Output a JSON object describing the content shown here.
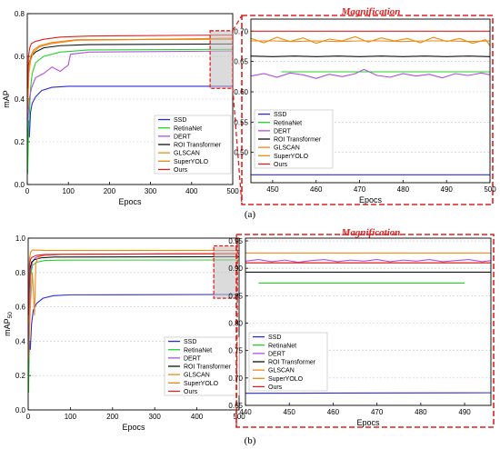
{
  "colors": {
    "SSD": "#2b2bd6",
    "RetinaNet": "#22d422",
    "DERT": "#b04fe0",
    "ROI Transformer": "#111111",
    "GLSCAN": "#f08a1c",
    "SuperYOLO": "#e88a10",
    "Ours": "#e02020",
    "zoom_box": "#e02020",
    "magnification_title": "#e02020"
  },
  "figure": {
    "panel_a_label": "(a)",
    "panel_b_label": "(b)",
    "magnification_title_a": "Magnification",
    "magnification_title_b": "Magnification"
  },
  "chart_data": [
    {
      "id": "a-main",
      "type": "line",
      "xlabel": "Epocs",
      "ylabel": "mAP",
      "xlim": [
        0,
        500
      ],
      "ylim": [
        0,
        0.8
      ],
      "xticks": [
        "0",
        "100",
        "200",
        "300",
        "400",
        "500"
      ],
      "yticks": [
        "0.0",
        "0.2",
        "0.4",
        "0.6",
        "0.8"
      ],
      "grid": true,
      "legend_position": "bottom-right",
      "series": [
        {
          "name": "SSD",
          "x": [
            1,
            3,
            5,
            8,
            12,
            20,
            35,
            60,
            100,
            500
          ],
          "y": [
            0.12,
            0.3,
            0.22,
            0.34,
            0.38,
            0.41,
            0.44,
            0.455,
            0.46,
            0.46
          ]
        },
        {
          "name": "RetinaNet",
          "x": [
            1,
            3,
            5,
            8,
            12,
            20,
            40,
            80,
            150,
            500
          ],
          "y": [
            0.05,
            0.25,
            0.32,
            0.45,
            0.52,
            0.57,
            0.6,
            0.62,
            0.63,
            0.633
          ]
        },
        {
          "name": "DERT",
          "x": [
            1,
            5,
            10,
            20,
            40,
            60,
            80,
            100,
            105,
            150,
            500
          ],
          "y": [
            0.3,
            0.4,
            0.45,
            0.5,
            0.52,
            0.55,
            0.53,
            0.56,
            0.61,
            0.62,
            0.625
          ]
        },
        {
          "name": "ROI Transformer",
          "x": [
            1,
            3,
            6,
            10,
            20,
            40,
            80,
            150,
            500
          ],
          "y": [
            0.4,
            0.55,
            0.58,
            0.6,
            0.62,
            0.64,
            0.65,
            0.655,
            0.658
          ]
        },
        {
          "name": "GLSCAN",
          "x": [
            1,
            4,
            8,
            15,
            30,
            60,
            120,
            500
          ],
          "y": [
            0.35,
            0.52,
            0.58,
            0.62,
            0.645,
            0.66,
            0.675,
            0.685
          ]
        },
        {
          "name": "SuperYOLO",
          "x": [
            1,
            4,
            8,
            15,
            30,
            60,
            120,
            500
          ],
          "y": [
            0.38,
            0.55,
            0.6,
            0.63,
            0.65,
            0.665,
            0.678,
            0.68
          ]
        },
        {
          "name": "Ours",
          "x": [
            1,
            3,
            6,
            10,
            20,
            40,
            80,
            150,
            500
          ],
          "y": [
            0.45,
            0.6,
            0.64,
            0.66,
            0.67,
            0.68,
            0.69,
            0.695,
            0.7
          ]
        }
      ]
    },
    {
      "id": "a-zoom",
      "type": "line",
      "title": "Magnification",
      "xlabel": "Epocs",
      "xlim": [
        445,
        500
      ],
      "ylim": [
        0.45,
        0.72
      ],
      "xticks": [
        "450",
        "460",
        "470",
        "480",
        "490",
        "500"
      ],
      "yticks": [
        "0.50",
        "0.55",
        "0.60",
        "0.65",
        "0.70"
      ],
      "grid": true,
      "legend_position": "bottom-left",
      "series": [
        {
          "name": "SSD",
          "x": [
            445,
            500
          ],
          "y": [
            0.463,
            0.463
          ]
        },
        {
          "name": "RetinaNet",
          "x": [
            452,
            500
          ],
          "y": [
            0.633,
            0.633
          ]
        },
        {
          "name": "DERT",
          "x": [
            445,
            448,
            451,
            454,
            457,
            460,
            463,
            466,
            469,
            471,
            474,
            477,
            480,
            483,
            486,
            489,
            492,
            495,
            498,
            500
          ],
          "y": [
            0.626,
            0.63,
            0.624,
            0.631,
            0.628,
            0.622,
            0.629,
            0.625,
            0.63,
            0.637,
            0.627,
            0.624,
            0.63,
            0.626,
            0.629,
            0.623,
            0.63,
            0.627,
            0.631,
            0.628
          ]
        },
        {
          "name": "ROI Transformer",
          "x": [
            445,
            450,
            455,
            460,
            465,
            470,
            475,
            480,
            485,
            490,
            495,
            500
          ],
          "y": [
            0.659,
            0.658,
            0.659,
            0.658,
            0.659,
            0.658,
            0.659,
            0.658,
            0.659,
            0.658,
            0.659,
            0.658
          ]
        },
        {
          "name": "GLSCAN",
          "x": [
            445,
            450,
            455,
            460,
            465,
            470,
            475,
            480,
            485,
            490,
            495,
            500
          ],
          "y": [
            0.684,
            0.684,
            0.683,
            0.684,
            0.683,
            0.684,
            0.684,
            0.683,
            0.684,
            0.684,
            0.683,
            0.684
          ]
        },
        {
          "name": "SuperYOLO",
          "x": [
            445,
            448,
            451,
            454,
            457,
            460,
            463,
            466,
            469,
            472,
            475,
            478,
            481,
            484,
            487,
            490,
            493,
            496,
            499,
            500
          ],
          "y": [
            0.688,
            0.681,
            0.69,
            0.683,
            0.689,
            0.68,
            0.687,
            0.684,
            0.691,
            0.682,
            0.689,
            0.684,
            0.688,
            0.681,
            0.69,
            0.683,
            0.688,
            0.68,
            0.686,
            0.676
          ]
        },
        {
          "name": "Ours",
          "x": [
            445,
            500
          ],
          "y": [
            0.7,
            0.7
          ]
        }
      ]
    },
    {
      "id": "b-main",
      "type": "line",
      "xlabel": "Epocs",
      "ylabel": "mAP",
      "ylabel_sub": "50",
      "xlim": [
        0,
        500
      ],
      "ylim": [
        0,
        1.0
      ],
      "xticks": [
        "0",
        "100",
        "200",
        "300",
        "400",
        "500"
      ],
      "yticks": [
        "0.0",
        "0.2",
        "0.4",
        "0.6",
        "0.8",
        "1.0"
      ],
      "grid": true,
      "legend_position": "bottom-right",
      "series": [
        {
          "name": "SSD",
          "x": [
            1,
            3,
            5,
            8,
            12,
            20,
            35,
            60,
            100,
            500
          ],
          "y": [
            0.2,
            0.4,
            0.35,
            0.5,
            0.58,
            0.62,
            0.65,
            0.665,
            0.67,
            0.672
          ]
        },
        {
          "name": "RetinaNet",
          "x": [
            1,
            3,
            6,
            10,
            20,
            40,
            80,
            500
          ],
          "y": [
            0.1,
            0.55,
            0.78,
            0.84,
            0.86,
            0.87,
            0.872,
            0.873
          ]
        },
        {
          "name": "DERT",
          "x": [
            1,
            5,
            10,
            15,
            20,
            40,
            80,
            500
          ],
          "y": [
            0.4,
            0.8,
            0.86,
            0.88,
            0.89,
            0.9,
            0.905,
            0.91
          ]
        },
        {
          "name": "ROI Transformer",
          "x": [
            1,
            4,
            8,
            15,
            30,
            60,
            500
          ],
          "y": [
            0.6,
            0.82,
            0.86,
            0.875,
            0.885,
            0.89,
            0.892
          ]
        },
        {
          "name": "GLSCAN",
          "x": [
            1,
            5,
            10,
            15,
            18,
            22,
            30,
            60,
            500
          ],
          "y": [
            0.3,
            0.6,
            0.8,
            0.55,
            0.85,
            0.88,
            0.9,
            0.905,
            0.91
          ]
        },
        {
          "name": "SuperYOLO",
          "x": [
            1,
            3,
            6,
            10,
            20,
            40,
            500
          ],
          "y": [
            0.5,
            0.88,
            0.92,
            0.93,
            0.93,
            0.928,
            0.928
          ]
        },
        {
          "name": "Ours",
          "x": [
            1,
            3,
            6,
            10,
            20,
            40,
            500
          ],
          "y": [
            0.55,
            0.85,
            0.88,
            0.89,
            0.9,
            0.905,
            0.91
          ]
        }
      ]
    },
    {
      "id": "b-zoom",
      "type": "line",
      "title": "Magnification",
      "xlabel": "Epocs",
      "xlim": [
        440,
        496
      ],
      "ylim": [
        0.65,
        0.955
      ],
      "xticks": [
        "440",
        "450",
        "460",
        "470",
        "480",
        "490"
      ],
      "yticks": [
        "0.65",
        "0.70",
        "0.75",
        "0.80",
        "0.85",
        "0.90",
        "0.95"
      ],
      "grid": true,
      "legend_position": "bottom-left",
      "series": [
        {
          "name": "SSD",
          "x": [
            440,
            496
          ],
          "y": [
            0.672,
            0.673
          ]
        },
        {
          "name": "RetinaNet",
          "x": [
            443,
            490
          ],
          "y": [
            0.873,
            0.873
          ]
        },
        {
          "name": "DERT",
          "x": [
            440,
            443,
            446,
            449,
            452,
            455,
            458,
            461,
            464,
            467,
            470,
            473,
            476,
            479,
            482,
            485,
            488,
            491,
            494,
            496
          ],
          "y": [
            0.913,
            0.916,
            0.912,
            0.915,
            0.911,
            0.914,
            0.916,
            0.912,
            0.915,
            0.913,
            0.916,
            0.912,
            0.915,
            0.913,
            0.916,
            0.912,
            0.914,
            0.916,
            0.912,
            0.914
          ]
        },
        {
          "name": "ROI Transformer",
          "x": [
            440,
            496
          ],
          "y": [
            0.893,
            0.893
          ]
        },
        {
          "name": "GLSCAN",
          "x": [
            440,
            496
          ],
          "y": [
            0.91,
            0.91
          ]
        },
        {
          "name": "SuperYOLO",
          "x": [
            440,
            496
          ],
          "y": [
            0.928,
            0.928
          ]
        },
        {
          "name": "Ours",
          "x": [
            440,
            496
          ],
          "y": [
            0.91,
            0.91
          ]
        }
      ]
    }
  ]
}
